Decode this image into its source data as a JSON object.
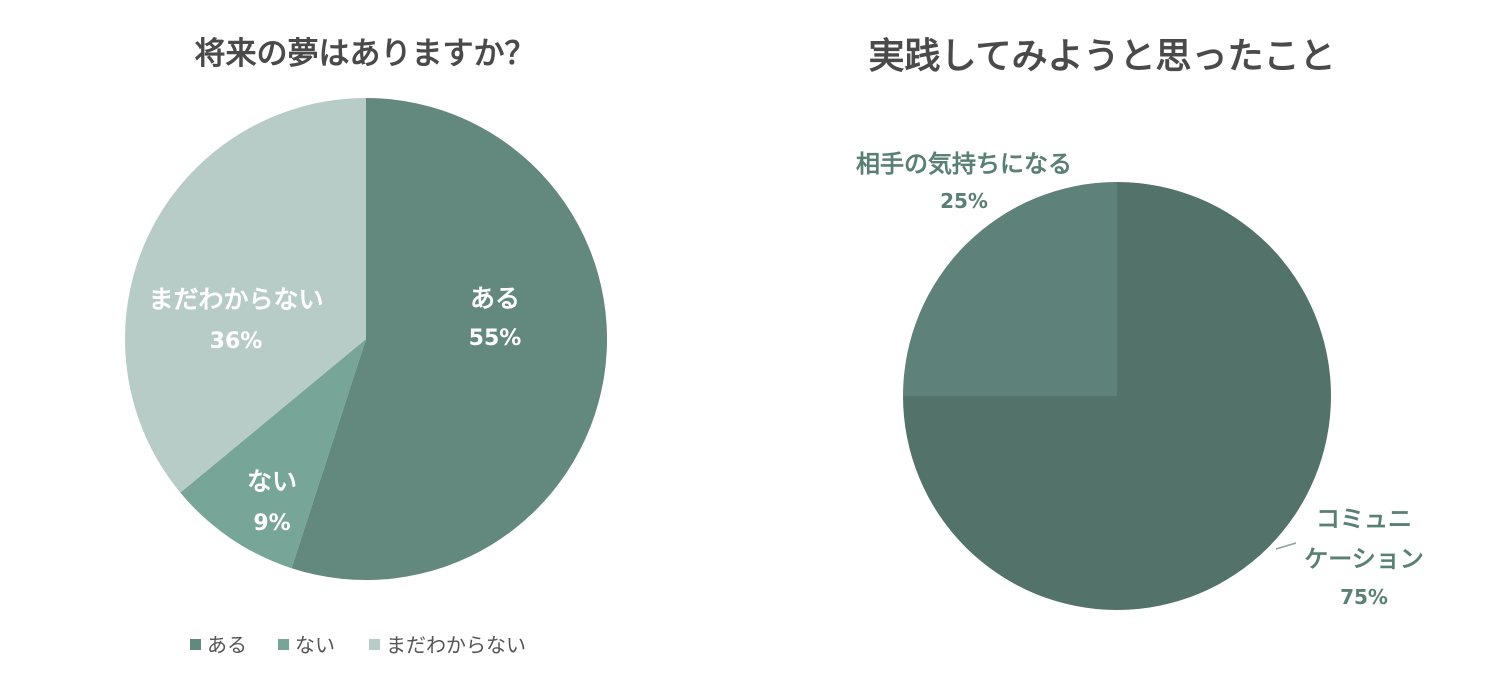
{
  "chart_data": [
    {
      "type": "pie",
      "title": "将来の夢はありますか？",
      "categories": [
        "ある",
        "ない",
        "まだわからない"
      ],
      "values": [
        55,
        9,
        36
      ],
      "value_labels": [
        "55%",
        "9%",
        "36%"
      ],
      "colors": [
        "#63887e",
        "#77a598",
        "#b8ccc7"
      ],
      "legend": {
        "placement": "bottom",
        "entries": [
          "ある",
          "ない",
          "まだわからない"
        ]
      }
    },
    {
      "type": "pie",
      "title": "実践してみようと思ったこと",
      "categories": [
        "コミュニケーション",
        "相手の気持ちになる"
      ],
      "category_lines": [
        [
          "コミュニ",
          "ケーション"
        ],
        [
          "相手の気持ちになる"
        ]
      ],
      "values": [
        75,
        25
      ],
      "value_labels": [
        "75%",
        "25%"
      ],
      "colors": [
        "#53736a",
        "#5e8179"
      ]
    }
  ]
}
